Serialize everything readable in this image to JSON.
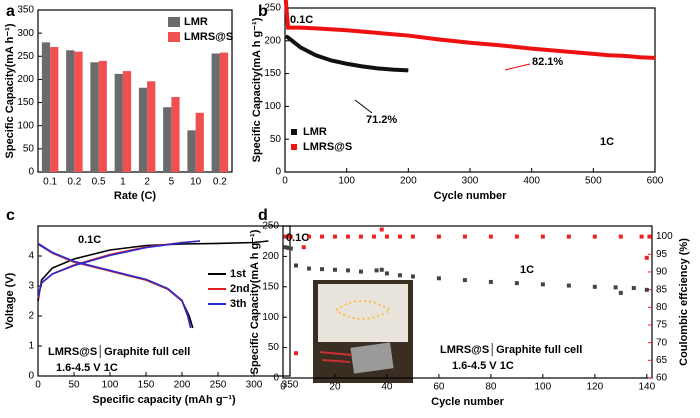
{
  "chart_data": [
    {
      "type": "bar",
      "panel_label": "a",
      "xlabel": "Rate (C)",
      "ylabel": "Specific Capacity(mA h⁻¹)",
      "categories": [
        "0.1",
        "0.2",
        "0.5",
        "1",
        "2",
        "5",
        "10",
        "0.2"
      ],
      "series": [
        {
          "name": "LMR",
          "color": "#6b6b6b",
          "values": [
            280,
            263,
            237,
            212,
            182,
            140,
            90,
            256
          ]
        },
        {
          "name": "LMRS@S",
          "color": "#f0504f",
          "values": [
            270,
            260,
            240,
            218,
            196,
            162,
            128,
            258
          ]
        }
      ],
      "ylim": [
        0,
        350
      ],
      "yticks": [
        0,
        50,
        100,
        150,
        200,
        250,
        300,
        350
      ],
      "legend": "upper right"
    },
    {
      "type": "line",
      "panel_label": "b",
      "xlabel": "Cycle number",
      "ylabel": "Specific Capacity(mA h g⁻¹)",
      "series": [
        {
          "name": "LMR",
          "color": "#111111",
          "x": [
            1,
            5,
            25,
            50,
            75,
            100,
            125,
            150,
            175,
            200
          ],
          "values": [
            207,
            205,
            190,
            178,
            170,
            165,
            161,
            158,
            156,
            155
          ]
        },
        {
          "name": "LMRS@S",
          "color": "#ee1111",
          "x": [
            1,
            5,
            25,
            50,
            100,
            150,
            200,
            250,
            300,
            350,
            400,
            450,
            500,
            525,
            550,
            575,
            600
          ],
          "values": [
            265,
            220,
            220,
            219,
            216,
            212,
            208,
            202,
            197,
            193,
            188,
            184,
            180,
            178,
            177,
            175,
            174
          ]
        }
      ],
      "xlim": [
        0,
        600
      ],
      "xticks": [
        0,
        100,
        200,
        300,
        400,
        500,
        600
      ],
      "ylim": [
        0,
        250
      ],
      "yticks": [
        0,
        50,
        100,
        150,
        200,
        250
      ],
      "annotations": [
        "0.1C",
        "71.2%",
        "82.1%",
        "1C"
      ],
      "legend": "lower left"
    },
    {
      "type": "line",
      "panel_label": "c",
      "xlabel": "Specific capacity (mAh g⁻¹)",
      "ylabel": "Voltage (V)",
      "series": [
        {
          "name": "1st",
          "color": "#000000",
          "x": [
            0,
            5,
            20,
            50,
            100,
            150,
            200,
            250,
            300,
            320,
            null,
            0,
            20,
            50,
            100,
            150,
            180,
            200,
            210,
            215
          ],
          "values": [
            2.5,
            3.2,
            3.6,
            3.9,
            4.2,
            4.35,
            4.4,
            4.42,
            4.45,
            4.5,
            null,
            4.4,
            4.1,
            3.8,
            3.5,
            3.2,
            2.9,
            2.5,
            2.0,
            1.6
          ]
        },
        {
          "name": "2nd",
          "color": "#e02020",
          "x": [
            0,
            5,
            20,
            50,
            100,
            150,
            200,
            225,
            null,
            0,
            20,
            50,
            100,
            150,
            180,
            200,
            208,
            212
          ],
          "values": [
            2.6,
            3.1,
            3.4,
            3.7,
            4.05,
            4.3,
            4.45,
            4.5,
            null,
            4.42,
            4.1,
            3.8,
            3.5,
            3.2,
            2.9,
            2.5,
            2.0,
            1.6
          ]
        },
        {
          "name": "3th",
          "color": "#2a2ad0",
          "x": [
            0,
            5,
            20,
            50,
            100,
            150,
            200,
            225,
            null,
            0,
            20,
            50,
            100,
            150,
            180,
            200,
            208,
            212
          ],
          "values": [
            2.65,
            3.1,
            3.4,
            3.68,
            4.02,
            4.28,
            4.44,
            4.5,
            null,
            4.42,
            4.12,
            3.82,
            3.52,
            3.22,
            2.92,
            2.52,
            2.0,
            1.6
          ]
        }
      ],
      "xlim": [
        0,
        350
      ],
      "xticks": [
        0,
        50,
        100,
        150,
        200,
        250,
        300,
        350
      ],
      "ylim": [
        0,
        5
      ],
      "yticks": [
        0,
        1,
        2,
        3,
        4
      ],
      "annotations": [
        "0.1C",
        "LMRS@S│Graphite  full cell",
        "1.6-4.5 V   1C"
      ],
      "legend": "center right"
    },
    {
      "type": "scatter",
      "panel_label": "d",
      "xlabel": "Cycle number",
      "ylabel": "Specific Capacity(mA h g⁻¹)",
      "y2label": "Coulombic effciency (%)",
      "series": [
        {
          "color": "#444444",
          "marker": "square",
          "x": [
            1,
            2,
            3,
            5,
            10,
            15,
            20,
            25,
            30,
            36,
            38,
            40,
            45,
            50,
            60,
            70,
            80,
            90,
            100,
            110,
            120,
            128,
            130,
            135,
            140
          ],
          "values": [
            215,
            214,
            213,
            185,
            180,
            179,
            178,
            177,
            175,
            177,
            178,
            172,
            169,
            167,
            164,
            161,
            158,
            156,
            154,
            152,
            150,
            149,
            140,
            148,
            145
          ]
        },
        {
          "color": "#ee2222",
          "marker": "square",
          "axis": "y2",
          "x": [
            1,
            2,
            3,
            5,
            8,
            10,
            15,
            20,
            25,
            30,
            35,
            38,
            40,
            45,
            50,
            60,
            70,
            80,
            90,
            100,
            110,
            120,
            130,
            138,
            140,
            141
          ],
          "values": [
            100,
            100,
            100,
            67,
            97,
            100,
            100,
            100,
            100,
            100,
            100,
            102,
            100,
            100,
            100,
            100,
            100,
            100,
            100,
            100,
            100,
            100,
            100,
            100,
            94,
            100
          ]
        }
      ],
      "xlim": [
        0,
        142
      ],
      "xticks": [
        0,
        20,
        40,
        60,
        80,
        100,
        120,
        140
      ],
      "ylim": [
        0,
        250
      ],
      "yticks": [
        0,
        50,
        100,
        150,
        200,
        250
      ],
      "y2lim": [
        60,
        103
      ],
      "y2ticks": [
        60,
        65,
        70,
        75,
        80,
        85,
        90,
        95,
        100
      ],
      "y2color": "#ee2222",
      "annotations": [
        "0.1C",
        "1C",
        "LMRS@S│Graphite  full cell",
        "1.6-4.5 V   1C"
      ]
    }
  ]
}
